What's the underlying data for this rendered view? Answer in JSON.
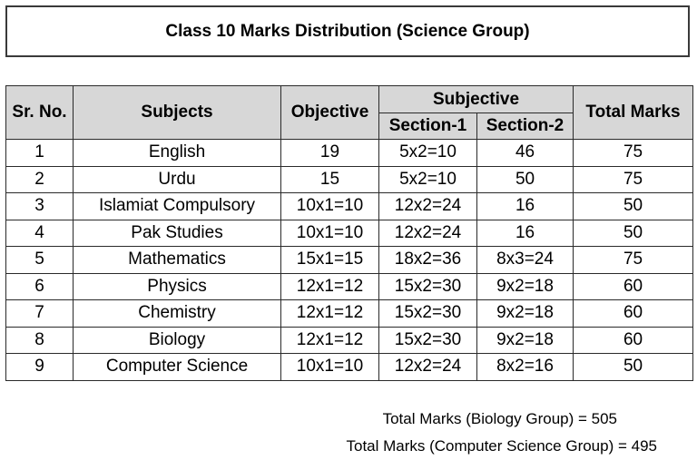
{
  "title": "Class 10 Marks Distribution (Science Group)",
  "headers": {
    "sr_no": "Sr. No.",
    "subjects": "Subjects",
    "objective": "Objective",
    "subjective": "Subjective",
    "section1": "Section-1",
    "section2": "Section-2",
    "total": "Total Marks"
  },
  "rows": [
    [
      "1",
      "English",
      "19",
      "5x2=10",
      "46",
      "75"
    ],
    [
      "2",
      "Urdu",
      "15",
      "5x2=10",
      "50",
      "75"
    ],
    [
      "3",
      "Islamiat Compulsory",
      "10x1=10",
      "12x2=24",
      "16",
      "50"
    ],
    [
      "4",
      "Pak Studies",
      "10x1=10",
      "12x2=24",
      "16",
      "50"
    ],
    [
      "5",
      "Mathematics",
      "15x1=15",
      "18x2=36",
      "8x3=24",
      "75"
    ],
    [
      "6",
      "Physics",
      "12x1=12",
      "15x2=30",
      "9x2=18",
      "60"
    ],
    [
      "7",
      "Chemistry",
      "12x1=12",
      "15x2=30",
      "9x2=18",
      "60"
    ],
    [
      "8",
      "Biology",
      "12x1=12",
      "15x2=30",
      "9x2=18",
      "60"
    ],
    [
      "9",
      "Computer Science",
      "10x1=10",
      "12x2=24",
      "8x2=16",
      "50"
    ]
  ],
  "footer": {
    "biology_total": "Total Marks (Biology Group) = 505",
    "cs_total": "Total Marks (Computer Science Group) = 495"
  }
}
